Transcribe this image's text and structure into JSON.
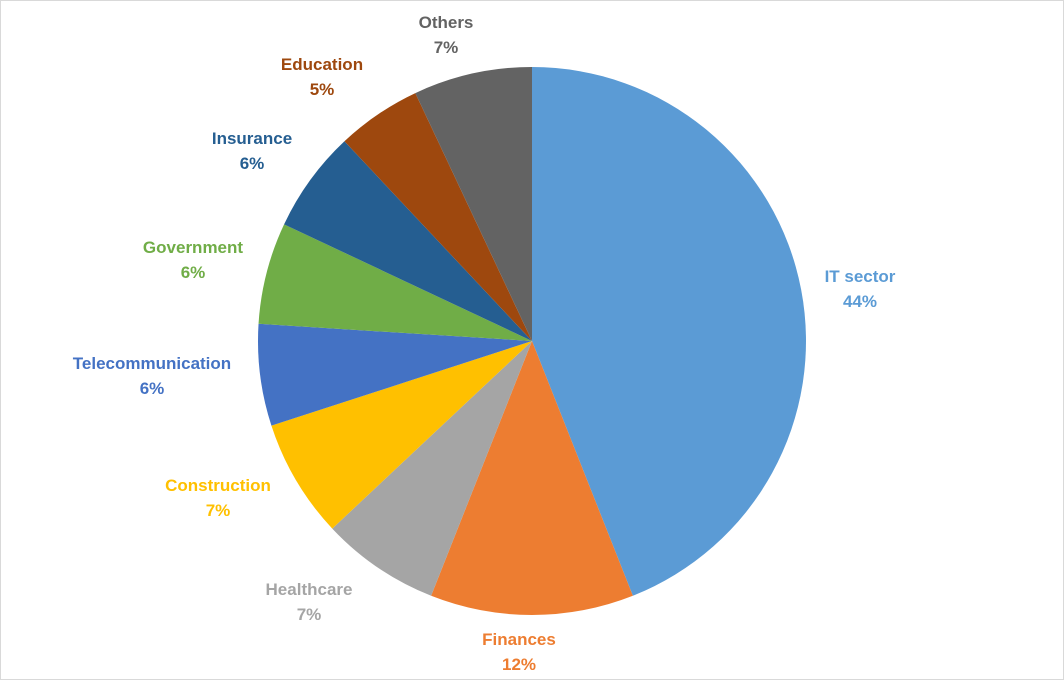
{
  "chart_data": {
    "type": "pie",
    "title": "",
    "start_angle_deg": 0,
    "direction": "clockwise",
    "legend": "none",
    "slices": [
      {
        "name": "IT sector",
        "value": 44,
        "label": "44%",
        "color": "#5B9BD5"
      },
      {
        "name": "Finances",
        "value": 12,
        "label": "12%",
        "color": "#ED7D31"
      },
      {
        "name": "Healthcare",
        "value": 7,
        "label": "7%",
        "color": "#A5A5A5"
      },
      {
        "name": "Construction",
        "value": 7,
        "label": "7%",
        "color": "#FFC000"
      },
      {
        "name": "Telecommunication",
        "value": 6,
        "label": "6%",
        "color": "#4472C4"
      },
      {
        "name": "Government",
        "value": 6,
        "label": "6%",
        "color": "#70AD47"
      },
      {
        "name": "Insurance",
        "value": 6,
        "label": "6%",
        "color": "#255E91"
      },
      {
        "name": "Education",
        "value": 5,
        "label": "5%",
        "color": "#9E480E"
      },
      {
        "name": "Others",
        "value": 7,
        "label": "7%",
        "color": "#636363"
      }
    ]
  }
}
